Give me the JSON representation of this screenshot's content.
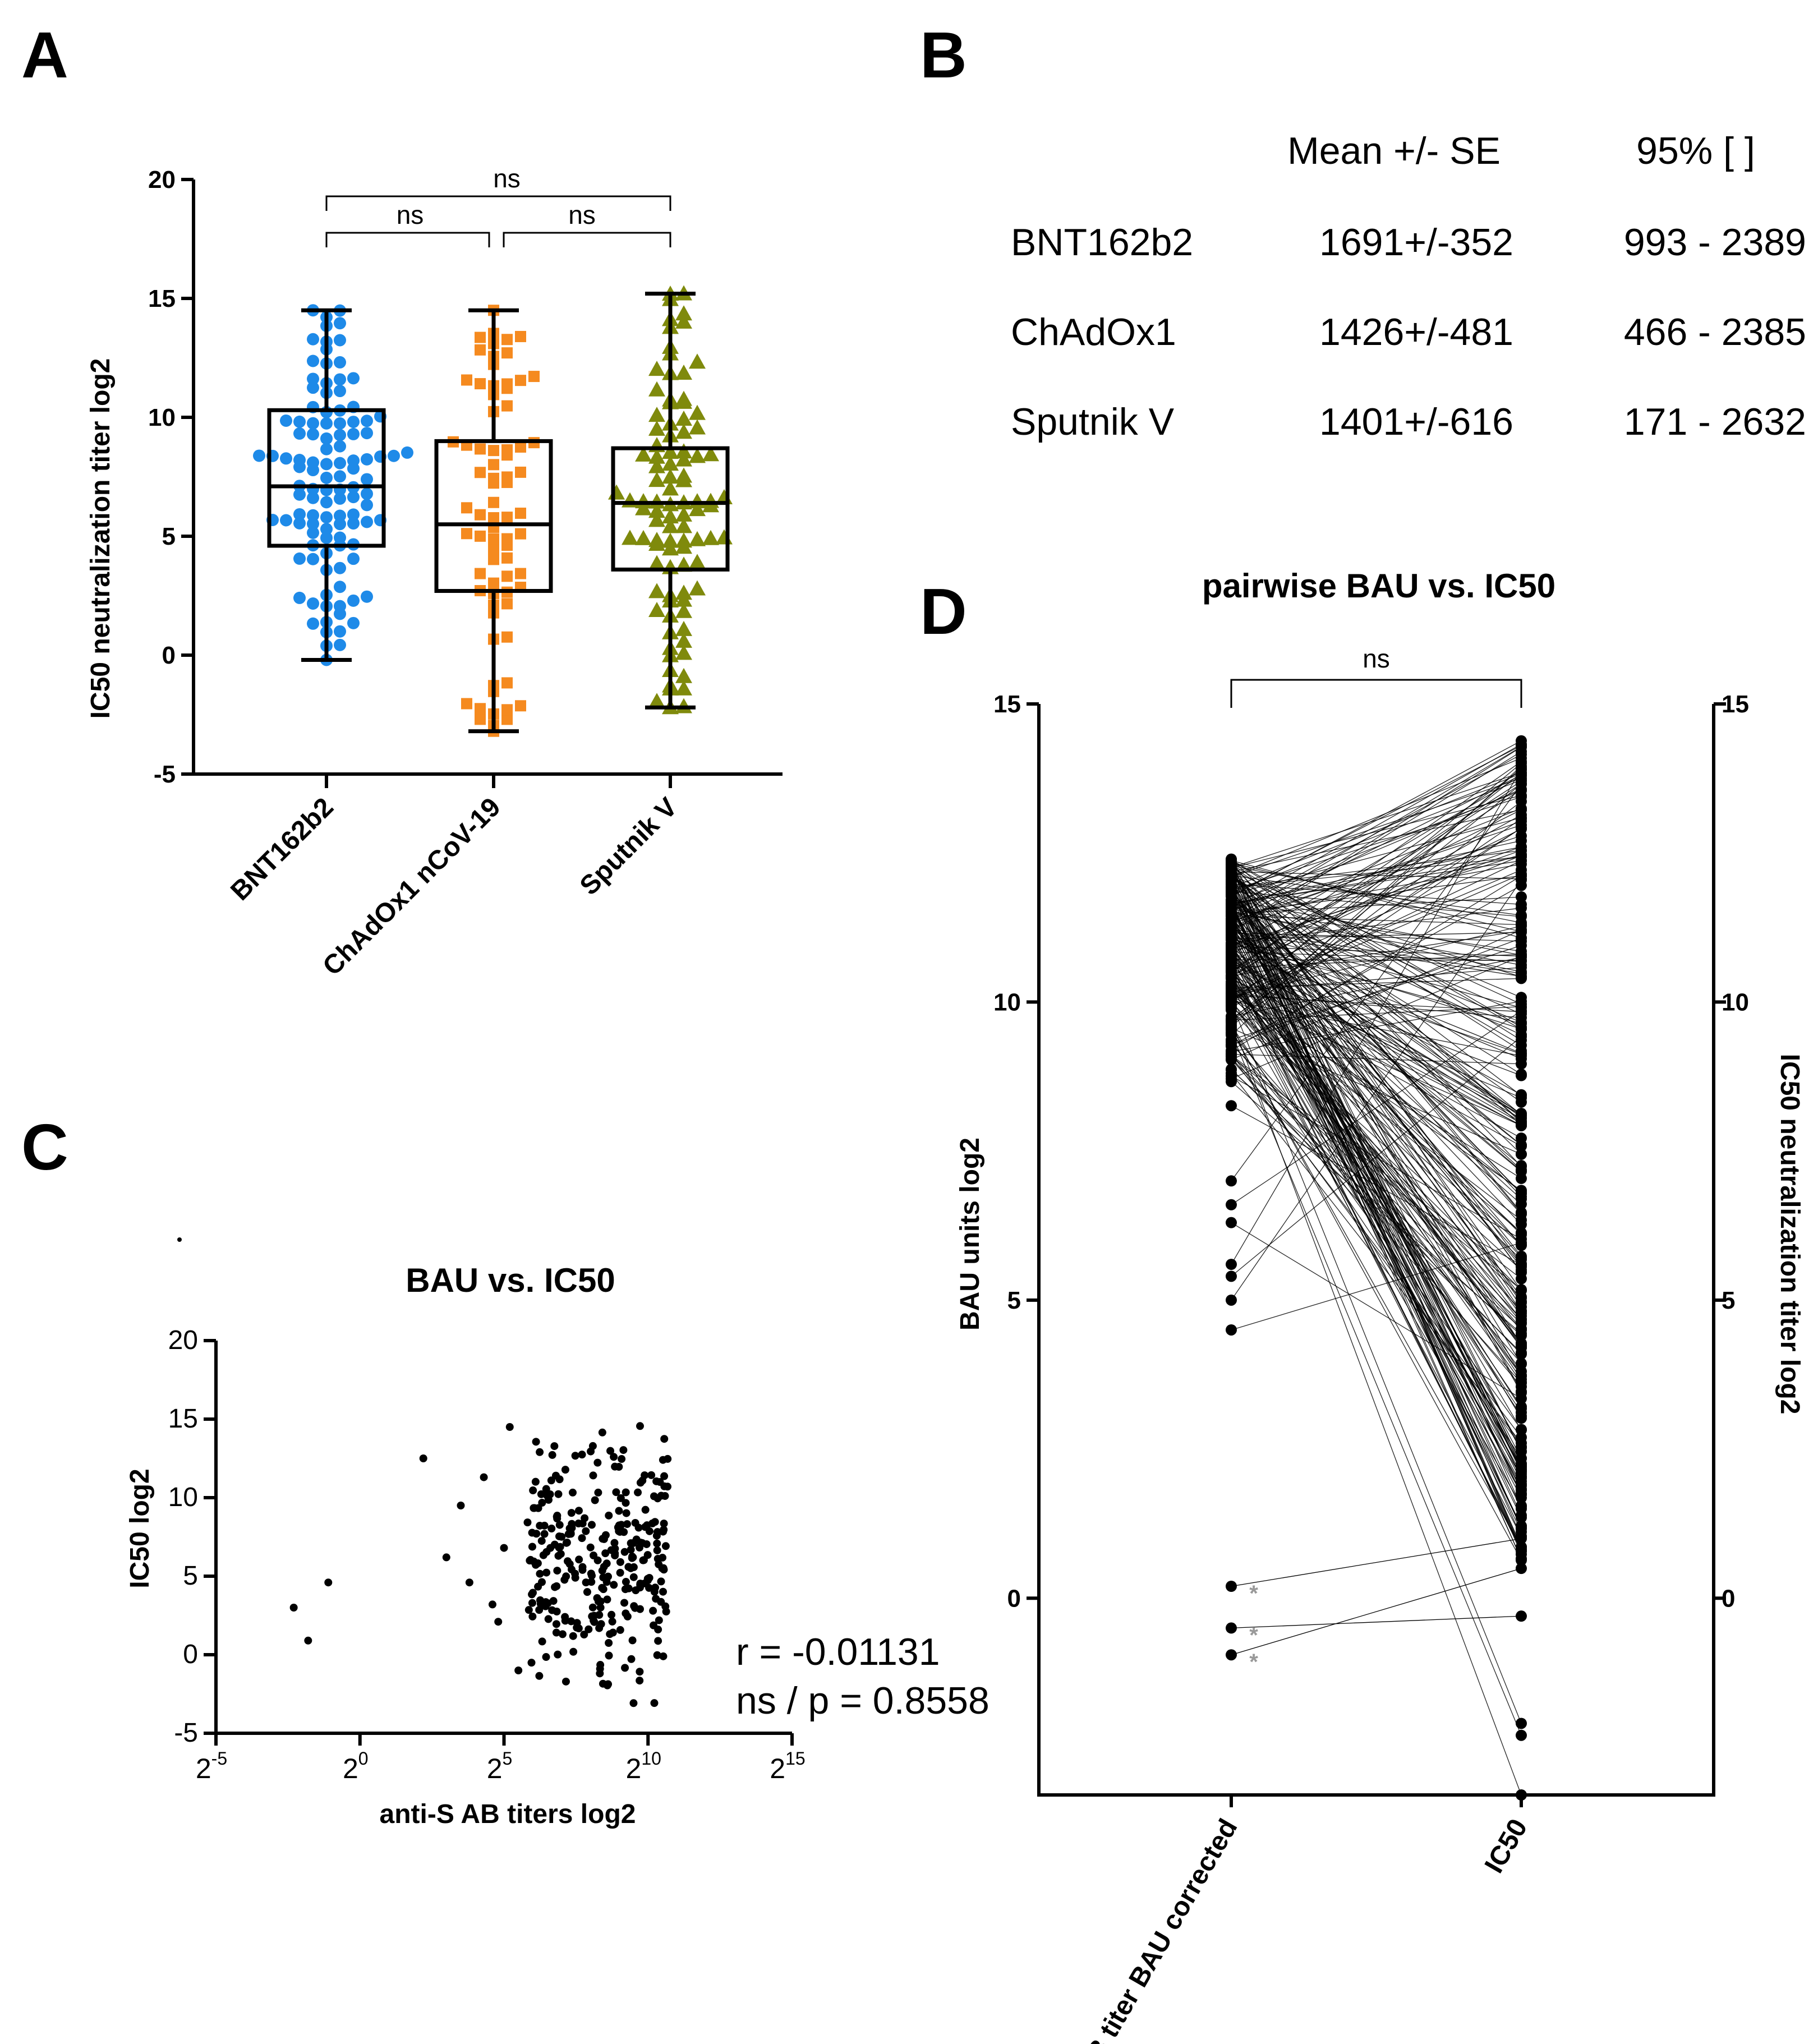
{
  "panels": {
    "a": "A",
    "b": "B",
    "c": "C",
    "d": "D"
  },
  "chart_data": [
    {
      "id": "A",
      "type": "box",
      "ylabel": "IC50 neutralization titer log2",
      "ylim": [
        -5,
        20
      ],
      "yticks": [
        -5,
        0,
        5,
        10,
        15,
        20
      ],
      "yticklabels": [
        "-5",
        "0",
        "5",
        "10",
        "15",
        "20"
      ],
      "categories": [
        "BNT162b2",
        "ChAdOx1 nCoV-19",
        "Sputnik V"
      ],
      "colors": [
        "#1e8ae8",
        "#f58a1f",
        "#7f8a0c"
      ],
      "markers": [
        "circle",
        "square",
        "triangle"
      ],
      "boxes": [
        {
          "min": -0.2,
          "q1": 4.6,
          "median": 7.1,
          "q3": 10.3,
          "max": 14.5,
          "n": 110
        },
        {
          "min": -3.2,
          "q1": 2.7,
          "median": 5.5,
          "q3": 9.0,
          "max": 14.5,
          "n": 75
        },
        {
          "min": -2.2,
          "q1": 3.6,
          "median": 6.4,
          "q3": 8.7,
          "max": 15.2,
          "n": 95
        }
      ],
      "comparisons": [
        {
          "pair": [
            0,
            1
          ],
          "label": "ns"
        },
        {
          "pair": [
            1,
            2
          ],
          "label": "ns"
        },
        {
          "pair": [
            0,
            2
          ],
          "label": "ns"
        }
      ]
    },
    {
      "id": "C",
      "type": "scatter",
      "title": "BAU vs. IC50",
      "xlabel": "anti-S AB titers log2",
      "ylabel": "IC50 log2",
      "xlim": [
        -5,
        15
      ],
      "ylim": [
        -5,
        20
      ],
      "xtick_values": [
        -5,
        0,
        5,
        10,
        15
      ],
      "xtick_base": "2",
      "xtick_exps": [
        "-5",
        "0",
        "5",
        "10",
        "15"
      ],
      "yticks": [
        -5,
        0,
        5,
        10,
        15,
        20
      ],
      "yticklabels": [
        "-5",
        "0",
        "5",
        "10",
        "15",
        "20"
      ],
      "outliers": [
        [
          -2.3,
          3.0
        ],
        [
          -1.8,
          0.9
        ],
        [
          -1.1,
          4.6
        ],
        [
          2.2,
          12.5
        ],
        [
          3.0,
          6.2
        ],
        [
          3.5,
          9.5
        ],
        [
          3.8,
          4.6
        ],
        [
          4.3,
          11.3
        ],
        [
          4.6,
          3.2
        ],
        [
          4.8,
          2.1
        ],
        [
          5.0,
          6.8
        ],
        [
          5.5,
          -1.0
        ],
        [
          5.2,
          14.5
        ]
      ],
      "cluster_n": 300,
      "cluster_x_range": [
        5.8,
        10.7
      ],
      "cluster_y_range": [
        -3.2,
        15.2
      ],
      "annotation_r": "r = -0.01131",
      "annotation_p": "ns / p = 0.8558"
    },
    {
      "id": "D",
      "type": "paired",
      "title": "pairwise BAU vs. IC50",
      "ylabel_left": "BAU units log2",
      "ylabel_right": "IC50 neutralization titer log2",
      "ylim": [
        -3.3,
        15
      ],
      "yticks": [
        0,
        5,
        10,
        15
      ],
      "yticklabels": [
        "0",
        "5",
        "10",
        "15"
      ],
      "categories": [
        "AB titer BAU corrected",
        "IC50"
      ],
      "n_pairs": 280,
      "left_range": [
        4.5,
        12.4
      ],
      "right_range": [
        -3.3,
        14.5
      ],
      "flagged_left": [
        0.2,
        -0.5,
        -0.95
      ],
      "flagged_right": [
        1.0,
        -0.3,
        0.5
      ],
      "flag_mark": "*",
      "comparison_label": "ns"
    }
  ],
  "table_b": {
    "header": [
      "Mean +/- SE",
      "95% [ ]"
    ],
    "rows": [
      {
        "name": "BNT162b2",
        "mean": "1691+/-352",
        "ci": "993 - 2389"
      },
      {
        "name": "ChAdOx1",
        "mean": "1426+/-481",
        "ci": "466 - 2385"
      },
      {
        "name": "Sputnik  V",
        "mean": "1401+/-616",
        "ci": "171 - 2632"
      }
    ]
  }
}
